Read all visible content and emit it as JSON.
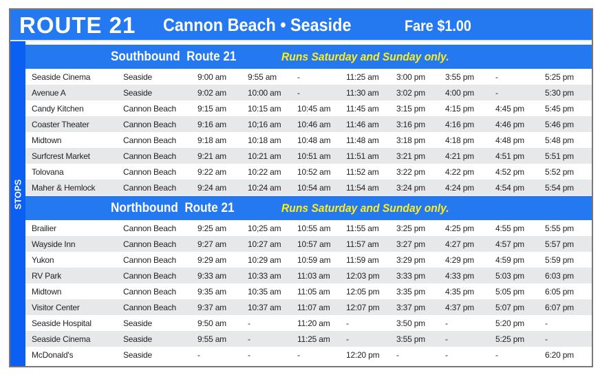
{
  "header": {
    "route": "ROUTE 21",
    "cities": "Cannon Beach • Seaside",
    "fare": "Fare $1.00"
  },
  "side_label": "STOPS",
  "colors": {
    "header_blue": "#2479f0",
    "side_blue": "#0b5ff2",
    "note_yellow": "#ffee1a",
    "alt_row": "#e6e8e9"
  },
  "southbound": {
    "title": "Southbound  Route 21",
    "note": "Runs Saturday and Sunday only.",
    "rows": [
      [
        "Seaside Cinema",
        "Seaside",
        "9:00 am",
        "9:55 am",
        "-",
        "11:25 am",
        "3:00 pm",
        "3:55 pm",
        "-",
        "5:25 pm"
      ],
      [
        "Avenue A",
        "Seaside",
        "9:02 am",
        "10:00 am",
        "-",
        "11:30 am",
        "3:02 pm",
        "4:00 pm",
        "-",
        "5:30 pm"
      ],
      [
        "Candy Kitchen",
        "Cannon Beach",
        "9:15 am",
        "10:15 am",
        "10:45 am",
        "11:45 am",
        "3:15 pm",
        "4:15 pm",
        "4:45 pm",
        "5:45 pm"
      ],
      [
        "Coaster Theater",
        "Cannon Beach",
        "9:16 am",
        "10;16 am",
        "10:46 am",
        "11:46 am",
        "3:16 pm",
        "4:16 pm",
        "4:46 pm",
        "5:46 pm"
      ],
      [
        "Midtown",
        "Cannon Beach",
        "9:18 am",
        "10:18 am",
        "10:48 am",
        "11:48 am",
        "3:18 pm",
        "4:18 pm",
        "4:48 pm",
        "5:48 pm"
      ],
      [
        "Surfcrest Market",
        "Cannon Beach",
        "9:21 am",
        "10:21 am",
        "10:51 am",
        "11:51 am",
        "3:21 pm",
        "4:21 pm",
        "4:51 pm",
        "5:51 pm"
      ],
      [
        "Tolovana",
        "Cannon Beach",
        "9:22 am",
        "10:22 am",
        "10:52 am",
        "11:52 am",
        "3:22 pm",
        "4:22 pm",
        "4:52 pm",
        "5:52 pm"
      ],
      [
        "Maher & Hemlock",
        "Cannon Beach",
        "9:24 am",
        "10:24 am",
        "10:54 am",
        "11:54 am",
        "3:24 pm",
        "4:24 pm",
        "4:54 pm",
        "5:54 pm"
      ]
    ]
  },
  "northbound": {
    "title": "Northbound  Route 21",
    "note": "Runs Saturday and Sunday only.",
    "rows": [
      [
        "Brailier",
        "Cannon Beach",
        "9:25 am",
        "10;25 am",
        "10:55 am",
        "11:55 am",
        "3:25 pm",
        "4:25 pm",
        "4:55 pm",
        "5:55 pm"
      ],
      [
        "Wayside Inn",
        "Cannon Beach",
        "9:27 am",
        "10:27 am",
        "10:57 am",
        "11:57 am",
        "3:27 pm",
        "4:27 pm",
        "4:57 pm",
        "5:57 pm"
      ],
      [
        "Yukon",
        "Cannon Beach",
        "9:29 am",
        "10:29 am",
        "10:59 am",
        "11:59 am",
        "3:29 pm",
        "4:29 pm",
        "4:59 pm",
        "5:59 pm"
      ],
      [
        "RV Park",
        "Cannon Beach",
        "9:33 am",
        "10:33 am",
        "11:03 am",
        "12:03 pm",
        "3:33 pm",
        "4:33 pm",
        "5:03 pm",
        "6:03 pm"
      ],
      [
        "Midtown",
        "Cannon Beach",
        "9:35 am",
        "10:35 am",
        "11:05 am",
        "12:05 pm",
        "3:35 pm",
        "4:35 pm",
        "5:05 pm",
        "6:05 pm"
      ],
      [
        "Visitor Center",
        "Cannon Beach",
        "9:37 am",
        "10:37 am",
        "11:07 am",
        "12:07 pm",
        "3:37 pm",
        "4:37 pm",
        "5:07 pm",
        "6:07 pm"
      ],
      [
        "Seaside Hospital",
        "Seaside",
        "9:50 am",
        "-",
        "11:20 am",
        "-",
        "3:50 pm",
        "-",
        "5:20 pm",
        "-"
      ],
      [
        "Seaside Cinema",
        "Seaside",
        "9:55 am",
        "-",
        "11:25 am",
        "-",
        "3:55 pm",
        "-",
        "5:25 pm",
        "-"
      ],
      [
        "McDonald's",
        "Seaside",
        "-",
        "-",
        "-",
        "12:20 pm",
        "-",
        "-",
        "-",
        "6:20 pm"
      ]
    ]
  }
}
